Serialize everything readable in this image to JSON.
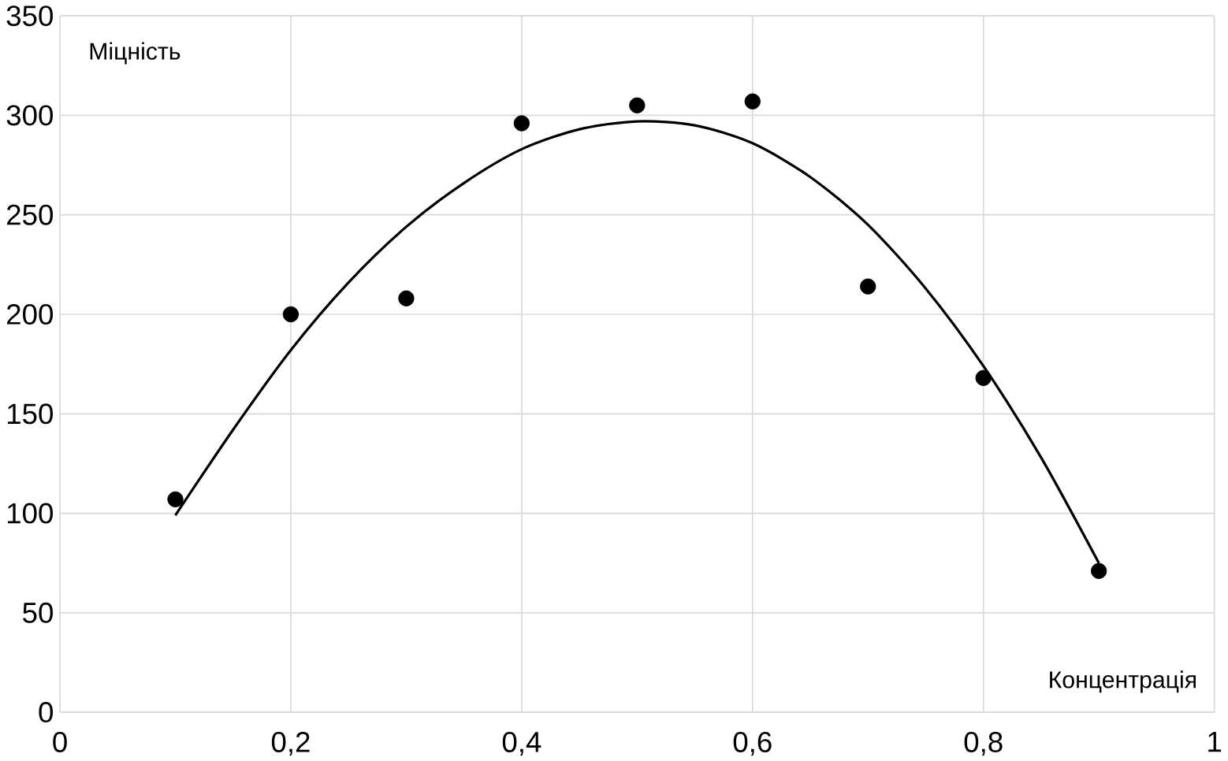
{
  "chart_data": {
    "type": "scatter",
    "xlabel": "Концентрація",
    "ylabel": "Міцність",
    "xlim": [
      0,
      1
    ],
    "ylim": [
      0,
      350
    ],
    "xticks": [
      0,
      {
        "value": 0.2,
        "label": "0,2"
      },
      {
        "value": 0.4,
        "label": "0,4"
      },
      {
        "value": 0.6,
        "label": "0,6"
      },
      {
        "value": 0.8,
        "label": "0,8"
      },
      1
    ],
    "yticks": [
      0,
      50,
      100,
      150,
      200,
      250,
      300,
      350
    ],
    "grid": true,
    "marker": "circle",
    "series": [
      {
        "color": "#000000",
        "x": [
          0.1,
          0.2,
          0.3,
          0.4,
          0.5,
          0.6,
          0.7,
          0.8,
          0.9
        ],
        "values": [
          107,
          200,
          208,
          296,
          305,
          307,
          214,
          168,
          71
        ]
      },
      {
        "type": "line",
        "color": "#000000",
        "marker": "none",
        "line_style": "solid",
        "x": [
          0.1,
          0.15,
          0.2,
          0.25,
          0.3,
          0.35,
          0.4,
          0.45,
          0.5,
          0.55,
          0.6,
          0.65,
          0.7,
          0.75,
          0.8,
          0.85,
          0.9
        ],
        "values": [
          99,
          142,
          182,
          216,
          244,
          266,
          283,
          293,
          297,
          295,
          286,
          269,
          245,
          213,
          174,
          128,
          75
        ]
      }
    ]
  }
}
